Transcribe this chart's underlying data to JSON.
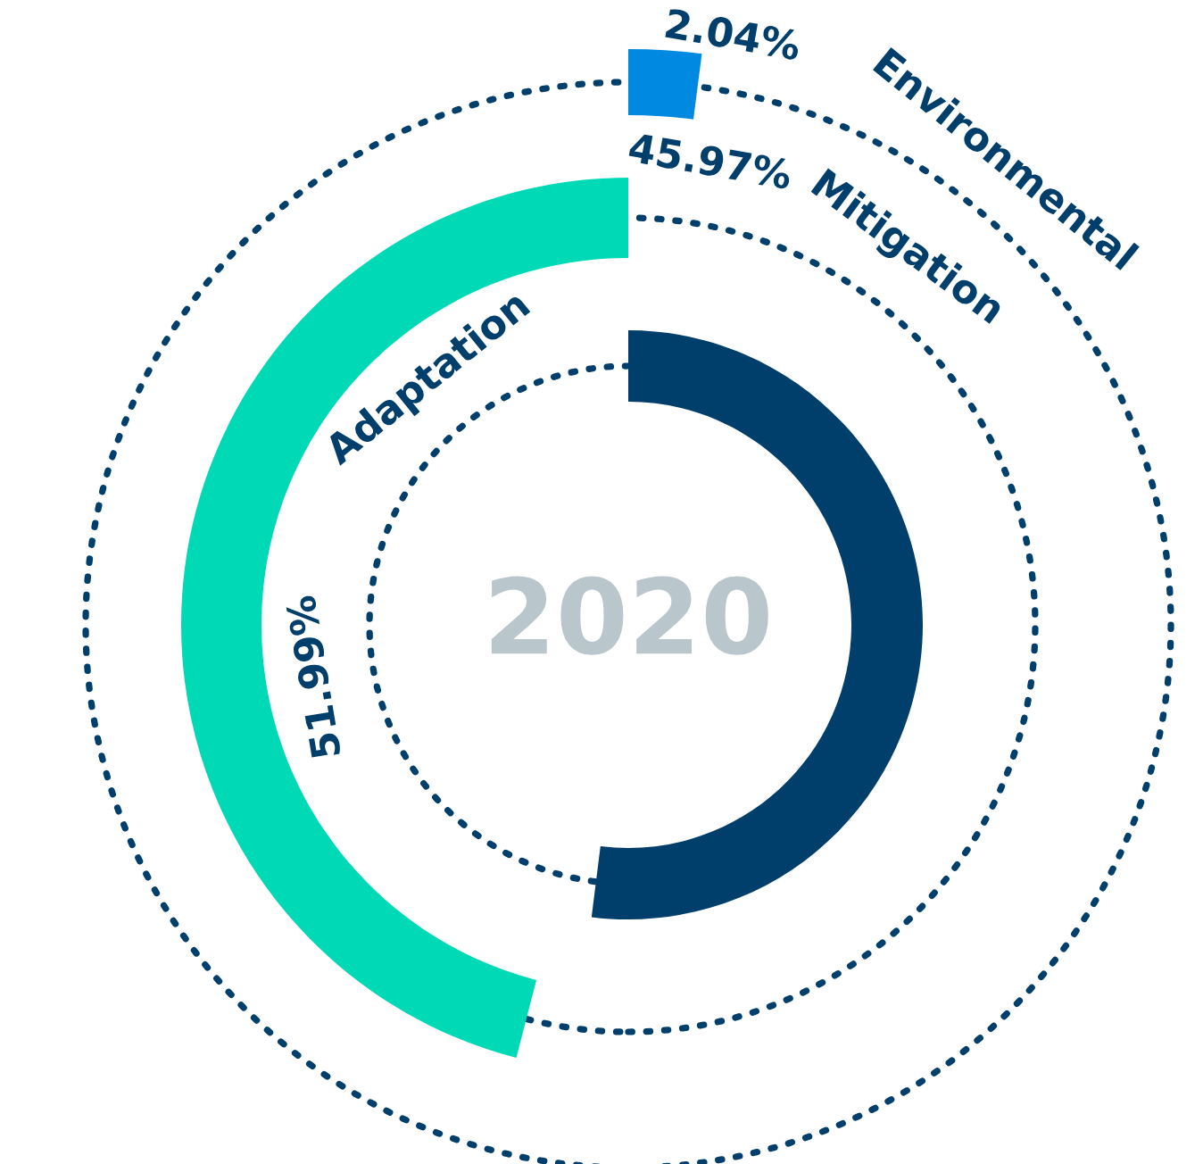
{
  "chart_data": {
    "type": "other",
    "title": "2020",
    "categories": [
      "Adaptation",
      "Mitigation",
      "Environmental"
    ],
    "values": [
      51.99,
      45.97,
      2.04
    ],
    "colors": [
      "#003f6b",
      "#00d9b5",
      "#0089e0"
    ],
    "value_labels": [
      "51.99%",
      "45.97%",
      "2.04%"
    ]
  }
}
